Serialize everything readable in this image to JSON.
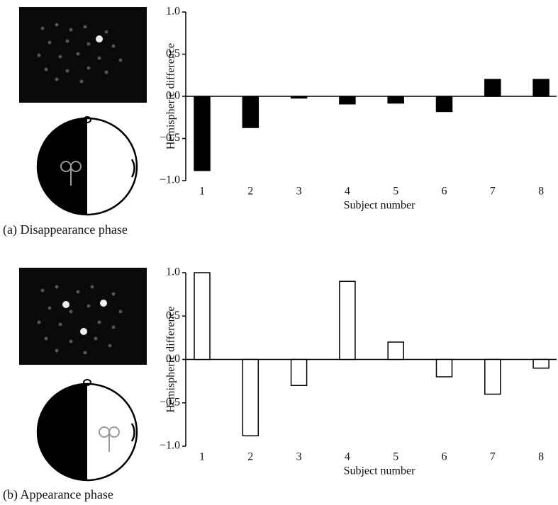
{
  "chart_data": [
    {
      "type": "bar",
      "caption": "(a) Disappearance phase",
      "xlabel": "Subject number",
      "ylabel": "Hemispheric difference",
      "categories": [
        "1",
        "2",
        "3",
        "4",
        "5",
        "6",
        "7",
        "8"
      ],
      "values": [
        -0.88,
        -0.37,
        -0.02,
        -0.09,
        -0.08,
        -0.18,
        0.2,
        0.2
      ],
      "color": "#000000",
      "ylim": [
        -1.0,
        1.0
      ],
      "yticks": [
        {
          "value": 1.0,
          "label": "1.0"
        },
        {
          "value": 0.5,
          "label": "0.5"
        },
        {
          "value": 0.0,
          "label": "0.0"
        },
        {
          "value": -0.5,
          "label": "−0.5"
        },
        {
          "value": -1.0,
          "label": "−1.0"
        }
      ]
    },
    {
      "type": "bar",
      "caption": "(b) Appearance phase",
      "xlabel": "Subject number",
      "ylabel": "Hemispheric difference",
      "categories": [
        "1",
        "2",
        "3",
        "4",
        "5",
        "6",
        "7",
        "8"
      ],
      "values": [
        1.0,
        -0.88,
        -0.3,
        0.9,
        0.2,
        -0.2,
        -0.4,
        -0.1
      ],
      "color": "#ffffff",
      "ylim": [
        -1.0,
        1.0
      ],
      "yticks": [
        {
          "value": 1.0,
          "label": "1.0"
        },
        {
          "value": 0.5,
          "label": "0.5"
        },
        {
          "value": 0.0,
          "label": "0.0"
        },
        {
          "value": -0.5,
          "label": "−0.5"
        },
        {
          "value": -1.0,
          "label": "−1.0"
        }
      ]
    }
  ]
}
